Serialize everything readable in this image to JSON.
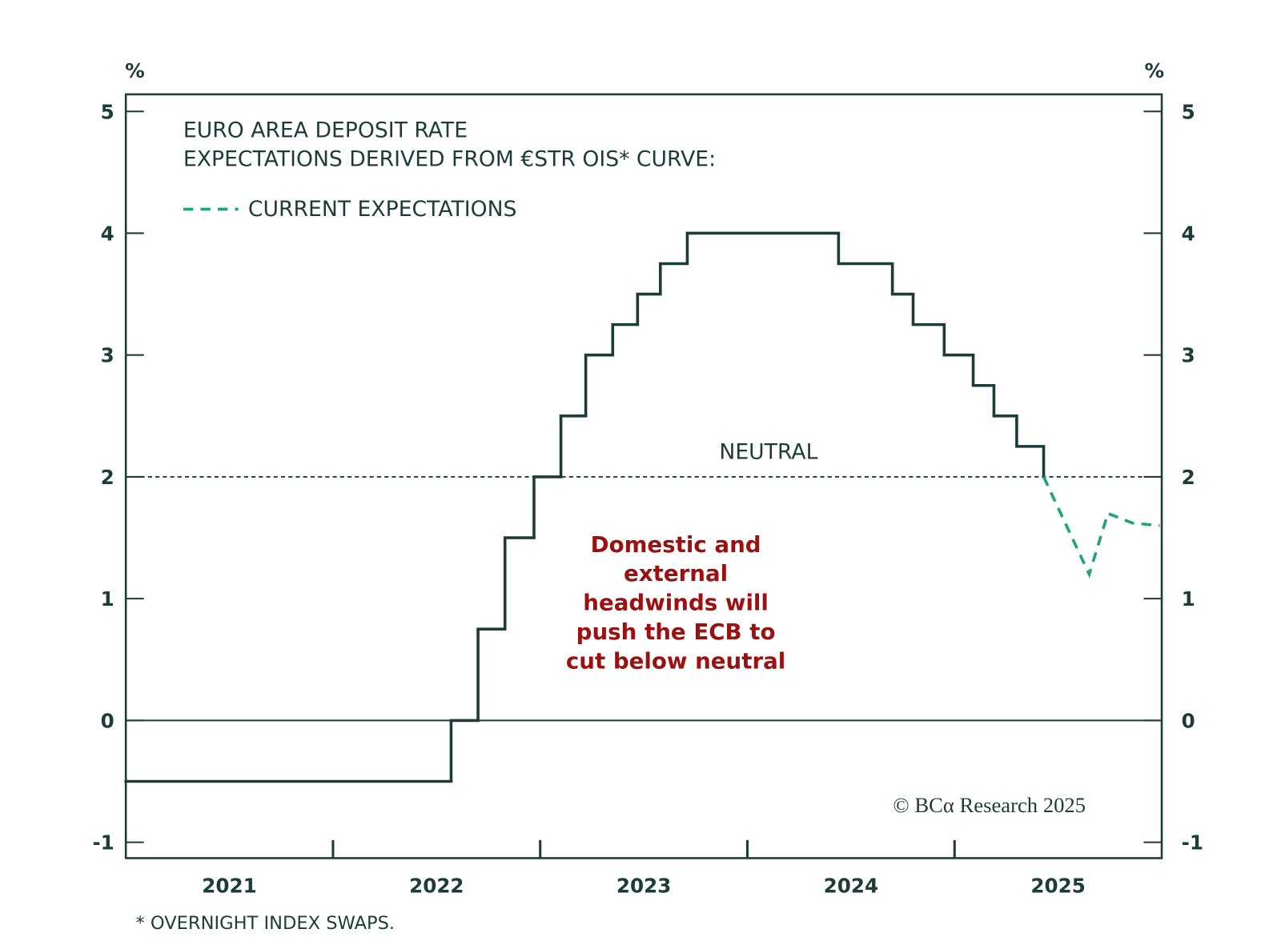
{
  "chart_data": {
    "type": "line",
    "title": [
      "EURO AREA DEPOSIT RATE",
      "EXPECTATIONS DERIVED FROM €STR OIS* CURVE:"
    ],
    "y_unit": "%",
    "series": [
      {
        "color": "#1d3c38",
        "step": true,
        "style": "solid",
        "x": [
          2021,
          2022.57,
          2022.7,
          2022.83,
          2022.97,
          2023.1,
          2023.22,
          2023.35,
          2023.47,
          2023.58,
          2023.71,
          2024.44,
          2024.7,
          2024.8,
          2024.95,
          2025.09,
          2025.19,
          2025.3,
          2025.43
        ],
        "values": [
          -0.5,
          0,
          0.75,
          1.5,
          2.0,
          2.5,
          3.0,
          3.25,
          3.5,
          3.75,
          4.0,
          3.75,
          3.5,
          3.25,
          3.0,
          2.75,
          2.5,
          2.25,
          2.0
        ]
      },
      {
        "name": "CURRENT EXPECTATIONS",
        "color": "#1fa37a",
        "step": false,
        "style": "dashed",
        "x": [
          2025.43,
          2025.65,
          2025.74,
          2025.86,
          2025.99
        ],
        "values": [
          2.0,
          1.2,
          1.7,
          1.62,
          1.6
        ]
      }
    ],
    "xlim": [
      2021,
      2026
    ],
    "xticks": [
      {
        "value": 2021.5,
        "label": "2021"
      },
      {
        "value": 2022.5,
        "label": "2022"
      },
      {
        "value": 2023.5,
        "label": "2023"
      },
      {
        "value": 2024.5,
        "label": "2024"
      },
      {
        "value": 2025.5,
        "label": "2025"
      }
    ],
    "xtick_marks": [
      2022,
      2023,
      2024,
      2025
    ],
    "ylim": [
      -1.13,
      5.14
    ],
    "yticks": [
      -1,
      0,
      1,
      2,
      3,
      4,
      5
    ],
    "y2lim": [
      -1.13,
      5.14
    ],
    "y2ticks": [
      -1,
      0,
      1,
      2,
      3,
      4,
      5
    ],
    "reference_line": {
      "value": 2,
      "label": "NEUTRAL"
    },
    "annotation": [
      "Domestic and",
      "external",
      "headwinds will",
      "push the ECB to",
      "cut below neutral"
    ],
    "annotation_color": "#9b1111",
    "source": "© BCα Research 2025",
    "footnote": "* OVERNIGHT INDEX SWAPS."
  }
}
